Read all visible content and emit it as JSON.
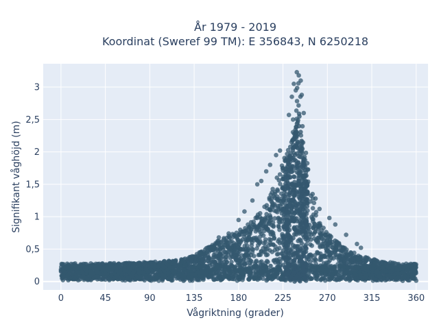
{
  "chart_data": {
    "type": "scatter",
    "title_line1": "År 1979 - 2019",
    "title_line2": "Koordinat (Sweref 99 TM): E 356843, N 6250218",
    "xlabel": "Vågriktning (grader)",
    "ylabel": "Signifikant våghöjd (m)",
    "xlim": [
      -18,
      372
    ],
    "ylim": [
      -0.13,
      3.36
    ],
    "xticks": [
      0,
      45,
      90,
      135,
      180,
      225,
      270,
      315,
      360
    ],
    "xtick_labels": [
      "0",
      "45",
      "90",
      "135",
      "180",
      "225",
      "270",
      "315",
      "360"
    ],
    "yticks": [
      0,
      0.5,
      1,
      1.5,
      2,
      2.5,
      3
    ],
    "ytick_labels": [
      "0",
      "0,5",
      "1",
      "1,5",
      "2",
      "2,5",
      "3"
    ],
    "grid": true,
    "marker_color": "#34586f",
    "plot_background": "#e5ecf6",
    "envelope": {
      "x": [
        0,
        45,
        90,
        120,
        135,
        150,
        165,
        180,
        195,
        205,
        215,
        225,
        232,
        237,
        240,
        242,
        245,
        250,
        255,
        262,
        270,
        285,
        300,
        315,
        330,
        345,
        360
      ],
      "y_max": [
        0.28,
        0.28,
        0.3,
        0.33,
        0.4,
        0.55,
        0.68,
        0.78,
        0.95,
        1.15,
        1.45,
        1.85,
        2.3,
        2.8,
        3.2,
        3.0,
        2.4,
        1.8,
        1.3,
        0.95,
        0.75,
        0.55,
        0.42,
        0.35,
        0.3,
        0.28,
        0.27
      ]
    },
    "outliers": [
      {
        "x": 239,
        "y": 3.23
      },
      {
        "x": 241,
        "y": 3.18
      },
      {
        "x": 236,
        "y": 3.05
      },
      {
        "x": 243,
        "y": 3.1
      },
      {
        "x": 238,
        "y": 2.95
      },
      {
        "x": 234,
        "y": 2.85
      },
      {
        "x": 244,
        "y": 2.88
      },
      {
        "x": 231,
        "y": 2.57
      },
      {
        "x": 246,
        "y": 2.6
      },
      {
        "x": 222,
        "y": 2.02
      },
      {
        "x": 212,
        "y": 1.8
      },
      {
        "x": 208,
        "y": 1.7
      },
      {
        "x": 199,
        "y": 1.5
      },
      {
        "x": 203,
        "y": 1.55
      },
      {
        "x": 186,
        "y": 1.08
      },
      {
        "x": 180,
        "y": 0.95
      },
      {
        "x": 262,
        "y": 1.12
      },
      {
        "x": 258,
        "y": 1.28
      },
      {
        "x": 278,
        "y": 0.88
      },
      {
        "x": 289,
        "y": 0.72
      },
      {
        "x": 300,
        "y": 0.58
      },
      {
        "x": 304,
        "y": 0.52
      },
      {
        "x": 255,
        "y": 1.35
      },
      {
        "x": 272,
        "y": 0.98
      },
      {
        "x": 160,
        "y": 0.68
      },
      {
        "x": 170,
        "y": 0.74
      },
      {
        "x": 194,
        "y": 1.25
      },
      {
        "x": 218,
        "y": 1.95
      }
    ]
  }
}
